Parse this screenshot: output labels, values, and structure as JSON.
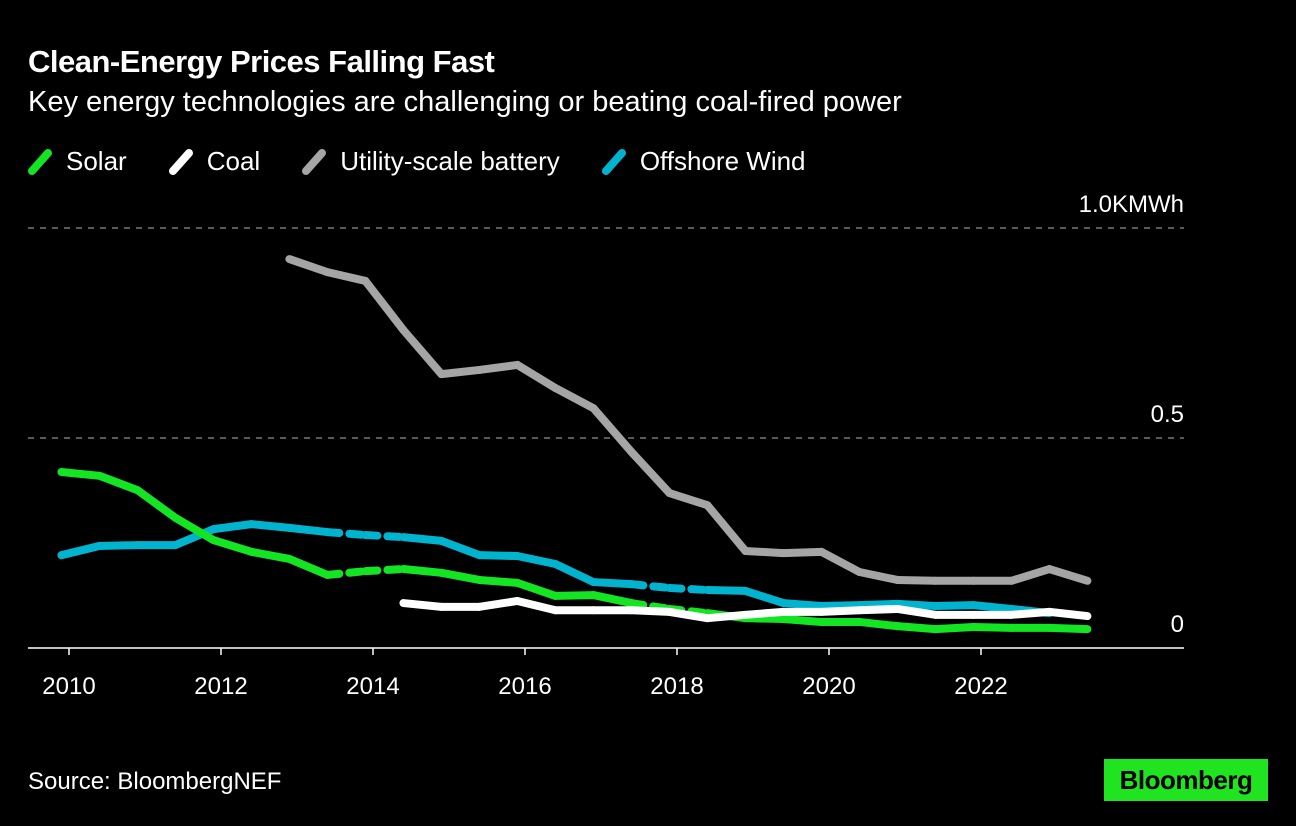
{
  "chart_data": {
    "type": "line",
    "title": "Clean-Energy Prices Falling Fast",
    "subtitle": "Key energy technologies are challenging or beating coal-fired power",
    "ylabel": "KMWh",
    "ylim": [
      0,
      1.0
    ],
    "yticks": [
      {
        "value": 0,
        "label": "0"
      },
      {
        "value": 0.5,
        "label": "0.5"
      },
      {
        "value": 1.0,
        "label": "1.0KMWh"
      }
    ],
    "xticks": [
      {
        "value": 2010,
        "label": "2010"
      },
      {
        "value": 2012,
        "label": "2012"
      },
      {
        "value": 2014,
        "label": "2014"
      },
      {
        "value": 2016,
        "label": "2016"
      },
      {
        "value": 2018,
        "label": "2018"
      },
      {
        "value": 2020,
        "label": "2020"
      },
      {
        "value": 2022,
        "label": "2022"
      }
    ],
    "xlim": [
      2009.7,
      2024.0
    ],
    "x": [
      2009.9,
      2010.4,
      2010.9,
      2011.4,
      2011.9,
      2012.4,
      2012.9,
      2013.4,
      2013.9,
      2014.4,
      2014.9,
      2015.4,
      2015.9,
      2016.4,
      2016.9,
      2017.4,
      2017.9,
      2018.4,
      2018.9,
      2019.4,
      2019.9,
      2020.4,
      2020.9,
      2021.4,
      2021.9,
      2022.4,
      2022.9,
      2023.4
    ],
    "dashed_segments_after_index": [
      7,
      8,
      15,
      16
    ],
    "grid": "dashed horizontal",
    "legend_position": "top-left",
    "series": [
      {
        "name": "Solar",
        "color": "#13e523",
        "values": [
          0.419,
          0.41,
          0.376,
          0.31,
          0.257,
          0.229,
          0.212,
          0.174,
          0.183,
          0.188,
          0.179,
          0.162,
          0.155,
          0.124,
          0.126,
          0.107,
          0.093,
          0.083,
          0.071,
          0.069,
          0.062,
          0.062,
          0.052,
          0.045,
          0.05,
          0.048,
          0.048,
          0.045
        ]
      },
      {
        "name": "Coal",
        "color": "#ffffff",
        "values": [
          null,
          null,
          null,
          null,
          null,
          null,
          null,
          null,
          null,
          0.107,
          0.098,
          0.098,
          0.112,
          0.09,
          0.09,
          0.09,
          0.086,
          0.071,
          0.079,
          0.086,
          0.086,
          0.09,
          0.093,
          0.079,
          0.079,
          0.079,
          0.086,
          0.076
        ]
      },
      {
        "name": "Utility-scale battery",
        "color": "#a5a5a5",
        "values": [
          null,
          null,
          null,
          null,
          null,
          null,
          0.926,
          0.895,
          0.874,
          0.757,
          0.652,
          0.662,
          0.674,
          0.619,
          0.571,
          0.467,
          0.369,
          0.34,
          0.231,
          0.226,
          0.229,
          0.181,
          0.162,
          0.16,
          0.16,
          0.16,
          0.188,
          0.16
        ]
      },
      {
        "name": "Offshore Wind",
        "color": "#00b4d0",
        "values": [
          0.221,
          0.243,
          0.245,
          0.245,
          0.283,
          0.295,
          0.286,
          0.276,
          0.269,
          0.264,
          0.255,
          0.221,
          0.219,
          0.2,
          0.157,
          0.152,
          0.143,
          0.138,
          0.136,
          0.107,
          0.1,
          0.102,
          0.105,
          0.1,
          0.102,
          0.093,
          0.083,
          null
        ]
      }
    ]
  },
  "source": "Source: BloombergNEF",
  "logo": "Bloomberg"
}
